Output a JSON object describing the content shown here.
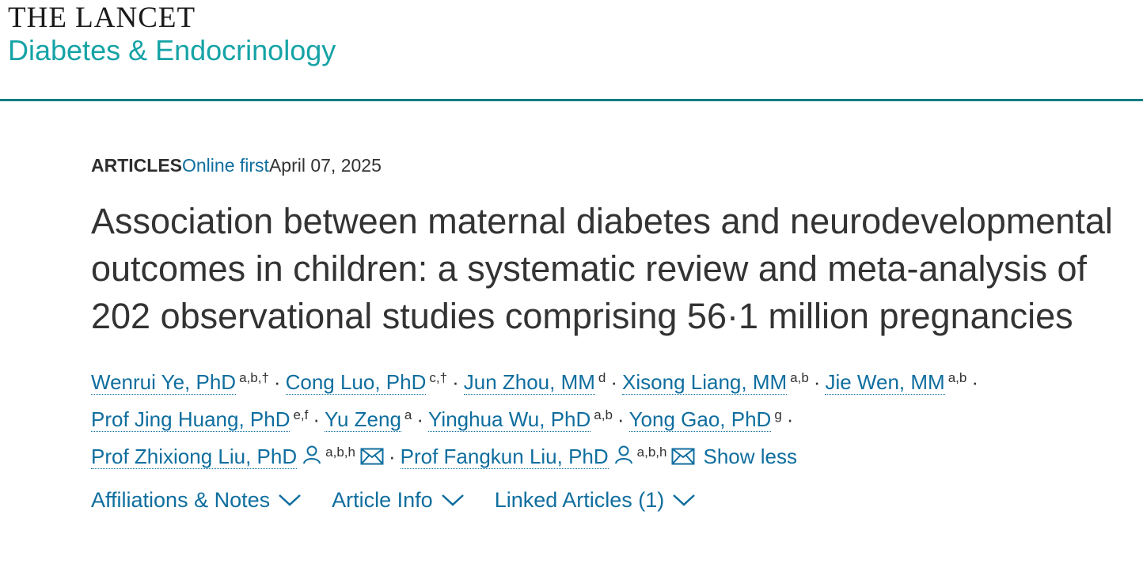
{
  "logo": {
    "top": "THE LANCET",
    "bottom": "Diabetes & Endocrinology"
  },
  "meta": {
    "type": "ARTICLES",
    "status": "Online first",
    "date": "April 07, 2025"
  },
  "title": "Association between maternal diabetes and neurodevelopmental outcomes in children: a systematic review and meta-analysis of 202 observational studies comprising 56·1 million pregnancies",
  "authors": [
    {
      "name": "Wenrui Ye, PhD",
      "sup": "a,b,†"
    },
    {
      "name": "Cong Luo, PhD",
      "sup": "c,†"
    },
    {
      "name": "Jun Zhou, MM",
      "sup": "d"
    },
    {
      "name": "Xisong Liang, MM",
      "sup": "a,b"
    },
    {
      "name": "Jie Wen, MM",
      "sup": "a,b"
    },
    {
      "name": "Prof Jing Huang, PhD",
      "sup": "e,f"
    },
    {
      "name": "Yu Zeng",
      "sup": "a"
    },
    {
      "name": "Yinghua Wu, PhD",
      "sup": "a,b"
    },
    {
      "name": "Yong Gao, PhD",
      "sup": "g"
    },
    {
      "name": "Prof Zhixiong Liu, PhD",
      "sup": "a,b,h"
    },
    {
      "name": "Prof Fangkun Liu, PhD",
      "sup": "a,b,h"
    }
  ],
  "separator": "·",
  "show_less": "Show less",
  "tabs": [
    {
      "label": "Affiliations & Notes"
    },
    {
      "label": "Article Info"
    },
    {
      "label": "Linked Articles (1)"
    }
  ],
  "colors": {
    "accent": "#0f6e9f",
    "brand_teal": "#16a3a6",
    "rule": "#0f7c83"
  }
}
